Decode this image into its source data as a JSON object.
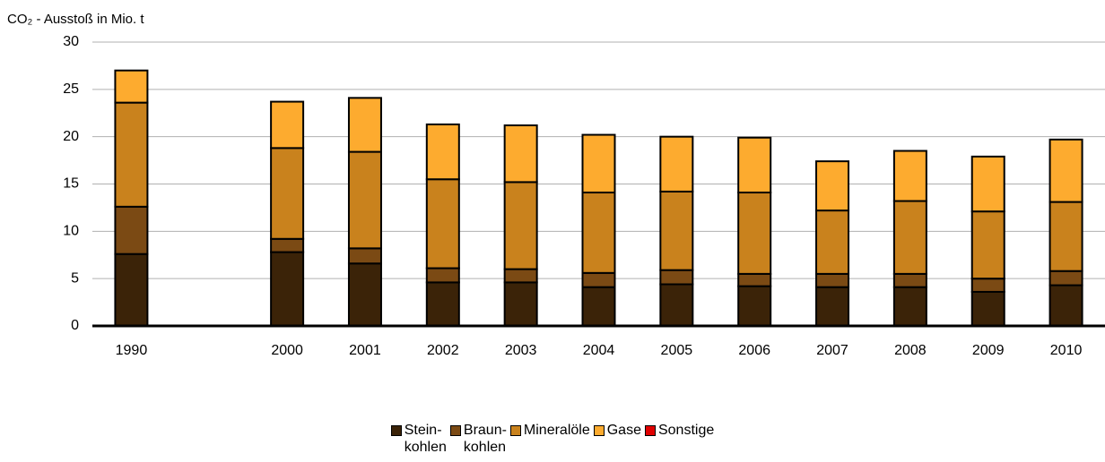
{
  "chart_data": {
    "type": "bar",
    "stacked": true,
    "y_label": "CO₂ - Ausstoß in Mio. t",
    "categories": [
      "1990",
      null,
      "2000",
      "2001",
      "2002",
      "2003",
      "2004",
      "2005",
      "2006",
      "2007",
      "2008",
      "2009",
      "2010"
    ],
    "series": [
      {
        "name": "Stein-\nkohlen",
        "color": "#3b2308",
        "values": [
          7.6,
          null,
          7.8,
          6.6,
          4.6,
          4.6,
          4.1,
          4.4,
          4.2,
          4.1,
          4.1,
          3.6,
          4.3
        ]
      },
      {
        "name": "Braun-\nkohlen",
        "color": "#7b4a14",
        "values": [
          5.0,
          null,
          1.4,
          1.6,
          1.5,
          1.4,
          1.5,
          1.5,
          1.3,
          1.4,
          1.4,
          1.4,
          1.5
        ]
      },
      {
        "name": "Mineralöle",
        "color": "#c9821d",
        "values": [
          11.0,
          null,
          9.6,
          10.2,
          9.4,
          9.2,
          8.5,
          8.3,
          8.6,
          6.7,
          7.7,
          7.1,
          7.3
        ]
      },
      {
        "name": "Gase",
        "color": "#fdab2f",
        "values": [
          3.4,
          null,
          4.9,
          5.7,
          5.8,
          6.0,
          6.1,
          5.8,
          5.8,
          5.2,
          5.3,
          5.8,
          6.6
        ]
      },
      {
        "name": "Sonstige",
        "color": "#e00000",
        "values": [
          0,
          null,
          0,
          0,
          0,
          0,
          0,
          0,
          0,
          0,
          0,
          0,
          0
        ]
      }
    ],
    "ylim": [
      0,
      30
    ],
    "yticks": [
      0,
      5,
      10,
      15,
      20,
      25,
      30
    ],
    "grid": true
  }
}
